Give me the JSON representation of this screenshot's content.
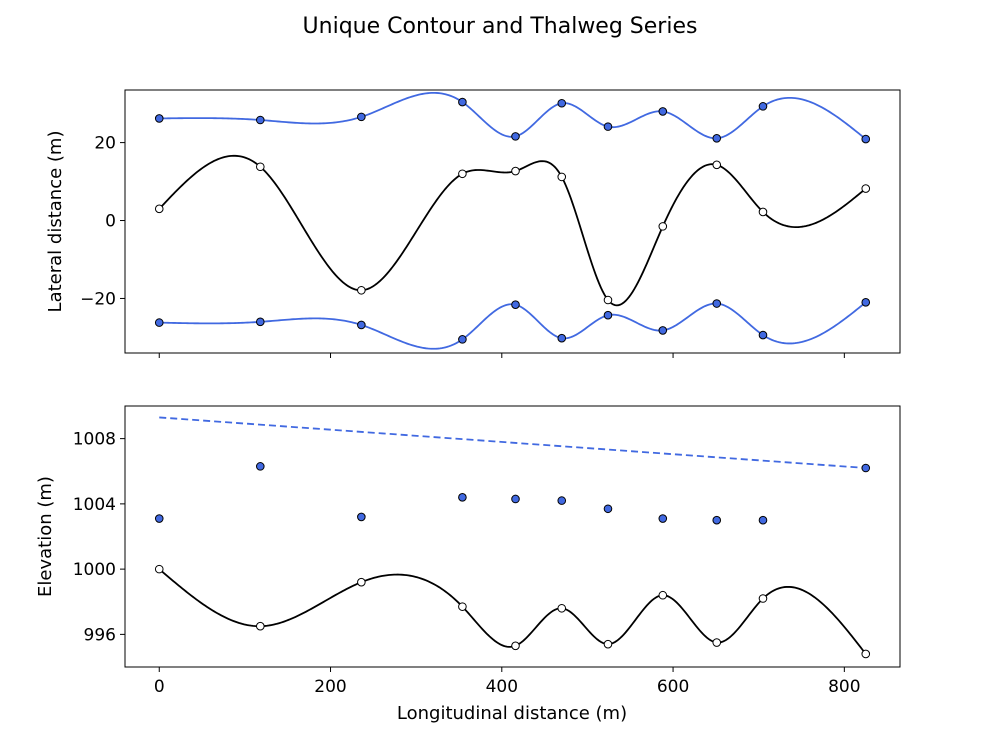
{
  "figure": {
    "title": "Unique Contour and Thalweg Series",
    "xlabel": "Longitudinal distance (m)"
  },
  "colors": {
    "contour": "#4169e1",
    "thalweg": "#000000",
    "marker_edge": "#000000",
    "thalweg_marker_fill": "#ffffff"
  },
  "chart_data": [
    {
      "type": "line",
      "panel": "top",
      "ylabel": "Lateral distance (m)",
      "xlim": [
        -40,
        865
      ],
      "ylim": [
        -34,
        33.5
      ],
      "xticks": [
        0,
        200,
        400,
        600,
        800
      ],
      "show_xtick_labels": false,
      "yticks": [
        -20,
        0,
        20
      ],
      "ytick_labels": [
        "−20",
        "0",
        "20"
      ],
      "grid": false,
      "series": [
        {
          "role": "upper-contour",
          "style": "solid",
          "marker_fill": "#4169e1",
          "x": [
            0,
            118,
            236,
            354,
            416,
            470,
            524,
            588,
            651,
            705,
            825
          ],
          "y": [
            26.2,
            25.8,
            26.6,
            30.4,
            21.6,
            30.1,
            24.1,
            28.0,
            21.1,
            29.3,
            20.9
          ]
        },
        {
          "role": "lower-contour",
          "style": "solid",
          "marker_fill": "#4169e1",
          "x": [
            0,
            118,
            236,
            354,
            416,
            470,
            524,
            588,
            651,
            705,
            825
          ],
          "y": [
            -26.2,
            -26.0,
            -26.8,
            -30.5,
            -21.6,
            -30.2,
            -24.3,
            -28.2,
            -21.3,
            -29.4,
            -21.0
          ]
        },
        {
          "role": "thalweg",
          "style": "solid",
          "marker_fill": "#ffffff",
          "color": "#000000",
          "x": [
            0,
            118,
            236,
            354,
            416,
            470,
            524,
            588,
            651,
            705,
            825
          ],
          "y": [
            3.0,
            13.8,
            -17.9,
            12.0,
            12.7,
            11.2,
            -20.4,
            -1.5,
            14.3,
            2.2,
            8.2
          ]
        }
      ]
    },
    {
      "type": "line",
      "panel": "bottom",
      "ylabel": "Elevation (m)",
      "xlabel": "Longitudinal distance (m)",
      "xlim": [
        -40,
        865
      ],
      "ylim": [
        994.0,
        1010.0
      ],
      "xticks": [
        0,
        200,
        400,
        600,
        800
      ],
      "xtick_labels": [
        "0",
        "200",
        "400",
        "600",
        "800"
      ],
      "yticks": [
        996,
        1000,
        1004,
        1008
      ],
      "ytick_labels": [
        "996",
        "1000",
        "1004",
        "1008"
      ],
      "grid": false,
      "series": [
        {
          "role": "contour-trend",
          "style": "dashed",
          "x": [
            0,
            825
          ],
          "y": [
            1009.3,
            1006.2
          ]
        },
        {
          "role": "contour-elevation-points",
          "style": "markers",
          "marker_fill": "#4169e1",
          "x": [
            0,
            118,
            236,
            354,
            416,
            470,
            524,
            588,
            651,
            705,
            825
          ],
          "y": [
            1003.1,
            1006.3,
            1003.2,
            1004.4,
            1004.3,
            1004.2,
            1003.7,
            1003.1,
            1003.0,
            1003.0,
            1006.2
          ]
        },
        {
          "role": "thalweg-elevation",
          "style": "solid",
          "marker_fill": "#ffffff",
          "color": "#000000",
          "x": [
            0,
            118,
            236,
            354,
            416,
            470,
            524,
            588,
            651,
            705,
            825
          ],
          "y": [
            1000.0,
            996.5,
            999.2,
            997.7,
            995.3,
            997.6,
            995.4,
            998.4,
            995.5,
            998.2,
            994.8
          ]
        }
      ]
    }
  ]
}
